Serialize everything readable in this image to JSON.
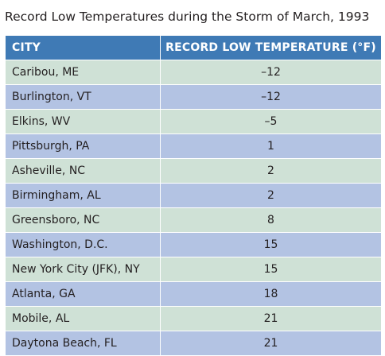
{
  "title": "Record Low Temperatures during the Storm of March, 1993",
  "columns": [
    "CITY",
    "RECORD LOW TEMPERATURE (°F)"
  ],
  "rows": [
    {
      "city": "Caribou, ME",
      "temp": "–12"
    },
    {
      "city": "Burlington, VT",
      "temp": "–12"
    },
    {
      "city": "Elkins, WV",
      "temp": "–5"
    },
    {
      "city": "Pittsburgh, PA",
      "temp": "1"
    },
    {
      "city": "Asheville, NC",
      "temp": "2"
    },
    {
      "city": "Birmingham, AL",
      "temp": "2"
    },
    {
      "city": "Greensboro, NC",
      "temp": "8"
    },
    {
      "city": "Washington, D.C.",
      "temp": "15"
    },
    {
      "city": "New York City (JFK), NY",
      "temp": "15"
    },
    {
      "city": "Atlanta, GA",
      "temp": "18"
    },
    {
      "city": "Mobile, AL",
      "temp": "21"
    },
    {
      "city": "Daytona Beach, FL",
      "temp": "21"
    }
  ],
  "colors": {
    "header_bg": "#3f7ab5",
    "row_odd": "#cfe1d6",
    "row_even": "#b3c3e3"
  }
}
